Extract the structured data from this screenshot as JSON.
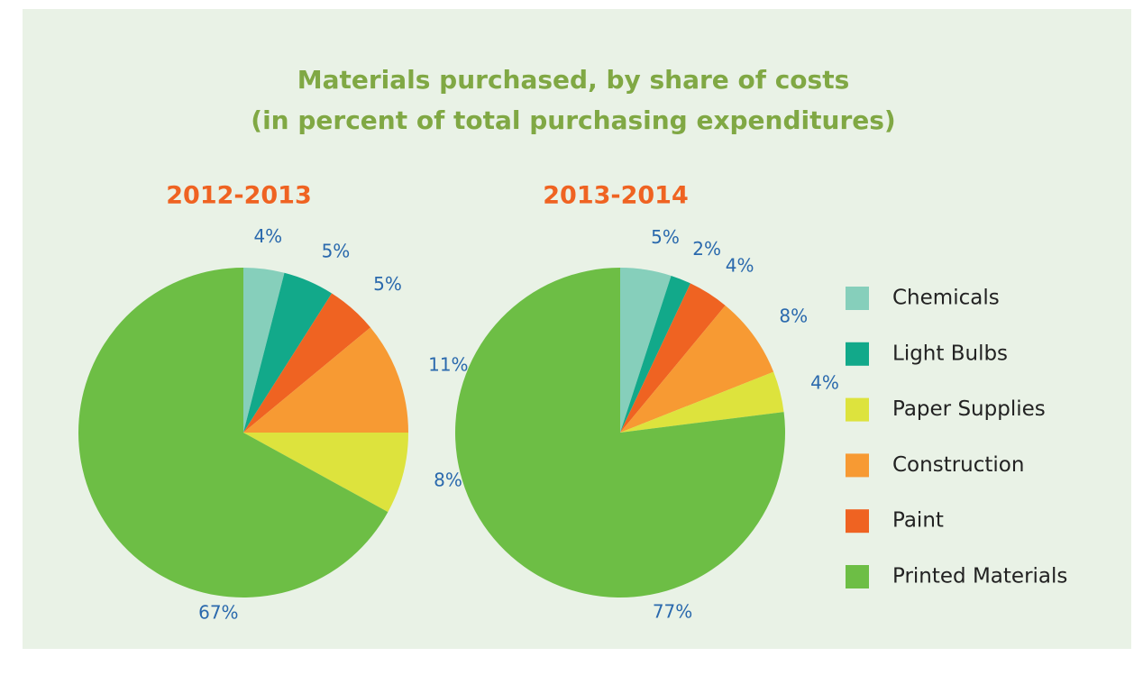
{
  "title": [
    "Materials purchased, by share of costs",
    "(in percent of total purchasing expenditures)"
  ],
  "legend": [
    {
      "name": "Chemicals",
      "color": "#86cfbb"
    },
    {
      "name": "Light Bulbs",
      "color": "#12a98a"
    },
    {
      "name": "Paper Supplies",
      "color": "#dde33d"
    },
    {
      "name": "Construction",
      "color": "#f79a33"
    },
    {
      "name": "Paint",
      "color": "#ef6322"
    },
    {
      "name": "Printed Materials",
      "color": "#6dbe45"
    }
  ],
  "chart_data": [
    {
      "type": "pie",
      "title": "2012-2013",
      "categories": [
        "Chemicals",
        "Light Bulbs",
        "Paint",
        "Construction",
        "Paper Supplies",
        "Printed Materials"
      ],
      "values": [
        4,
        5,
        5,
        11,
        8,
        67
      ],
      "value_labels": [
        "4%",
        "5%",
        "5%",
        "11%",
        "8%",
        "67%"
      ]
    },
    {
      "type": "pie",
      "title": "2013-2014",
      "categories": [
        "Chemicals",
        "Light Bulbs",
        "Paint",
        "Construction",
        "Paper Supplies",
        "Printed Materials"
      ],
      "values": [
        5,
        2,
        4,
        8,
        4,
        77
      ],
      "value_labels": [
        "5%",
        "2%",
        "4%",
        "8%",
        "4%",
        "77%"
      ]
    }
  ]
}
